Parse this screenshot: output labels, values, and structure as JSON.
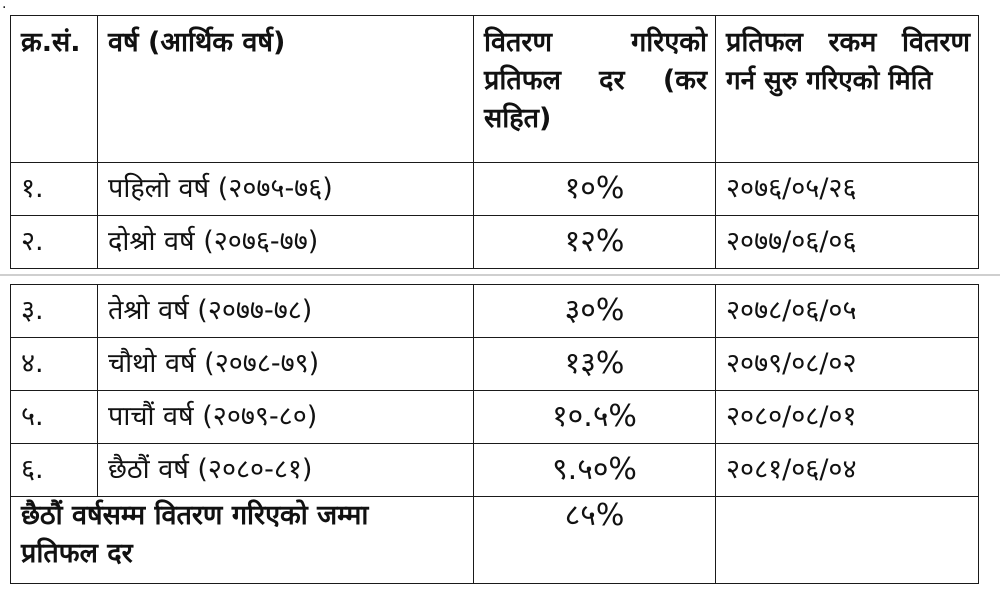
{
  "header": {
    "sn": "क्र.सं.",
    "year": "वर्ष (आर्थिक वर्ष)",
    "rate_line1": "वितरण गरिएको",
    "rate_line2": "प्रतिफल दर (कर",
    "rate_line3": "सहित)",
    "date_line1": "प्रतिफल रकम वितरण",
    "date_line2": "गर्न सुरु गरिएको मिति"
  },
  "rows_page1": [
    {
      "sn": "१.",
      "year": "पहिलो वर्ष (२०७५-७६)",
      "rate": "१०%",
      "date": "२०७६/०५/२६"
    },
    {
      "sn": "२.",
      "year": "दोश्रो वर्ष (२०७६-७७)",
      "rate": "१२%",
      "date": "२०७७/०६/०६"
    }
  ],
  "rows_page2": [
    {
      "sn": "३.",
      "year": "तेश्रो वर्ष (२०७७-७८)",
      "rate": "३०%",
      "date": "२०७८/०६/०५"
    },
    {
      "sn": "४.",
      "year": "चौथो वर्ष (२०७८-७९)",
      "rate": "१३%",
      "date": "२०७९/०८/०२"
    },
    {
      "sn": "५.",
      "year": "पाचौं वर्ष (२०७९-८०)",
      "rate": "१०.५%",
      "date": "२०८०/०८/०१"
    },
    {
      "sn": "६.",
      "year": "छैठौं वर्ष (२०८०-८१)",
      "rate": "९.५०%",
      "date": "२०८१/०६/०४"
    }
  ],
  "total": {
    "label_line1": "छैठौं वर्षसम्म वितरण गरिएको जम्मा",
    "label_line2": "प्रतिफल दर",
    "rate": "८५%",
    "date": ""
  }
}
